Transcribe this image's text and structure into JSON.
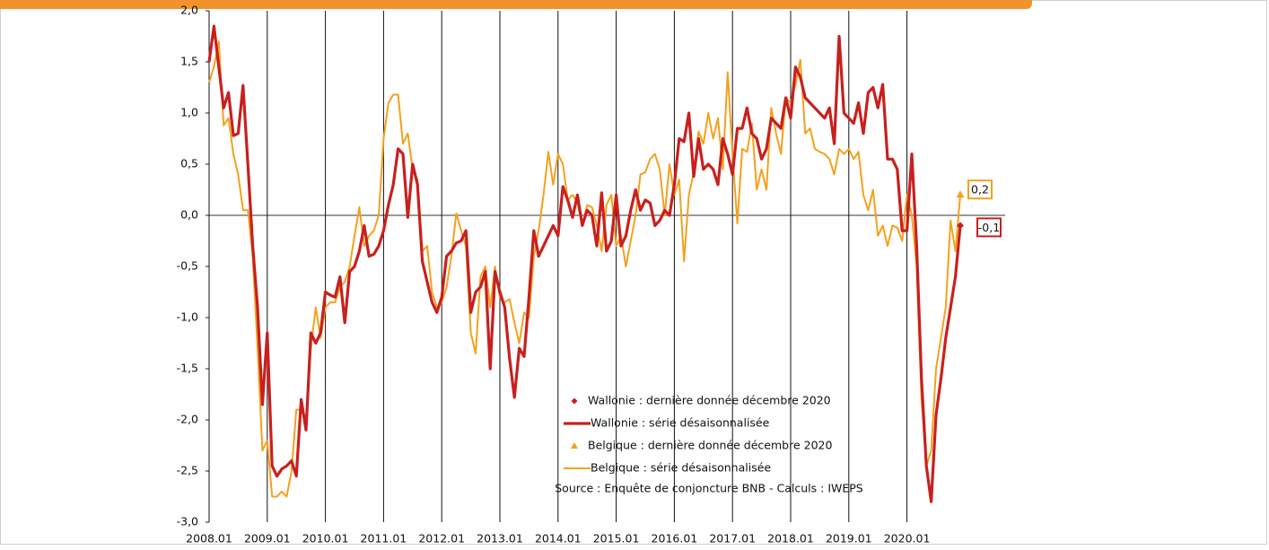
{
  "chart_data": {
    "type": "line",
    "categories": [
      "2008.01",
      null,
      null,
      null,
      null,
      null,
      null,
      null,
      null,
      null,
      null,
      null,
      "2009.01",
      null,
      null,
      null,
      null,
      null,
      null,
      null,
      null,
      null,
      null,
      null,
      "2010.01",
      null,
      null,
      null,
      null,
      null,
      null,
      null,
      null,
      null,
      null,
      null,
      "2011.01",
      null,
      null,
      null,
      null,
      null,
      null,
      null,
      null,
      null,
      null,
      null,
      "2012.01",
      null,
      null,
      null,
      null,
      null,
      null,
      null,
      null,
      null,
      null,
      null,
      "2013.01",
      null,
      null,
      null,
      null,
      null,
      null,
      null,
      null,
      null,
      null,
      null,
      "2014.01",
      null,
      null,
      null,
      null,
      null,
      null,
      null,
      null,
      null,
      null,
      null,
      "2015.01",
      null,
      null,
      null,
      null,
      null,
      null,
      null,
      null,
      null,
      null,
      null,
      "2016.01",
      null,
      null,
      null,
      null,
      null,
      null,
      null,
      null,
      null,
      null,
      null,
      "2017.01",
      null,
      null,
      null,
      null,
      null,
      null,
      null,
      null,
      null,
      null,
      null,
      "2018.01",
      null,
      null,
      null,
      null,
      null,
      null,
      null,
      null,
      null,
      null,
      null,
      "2019.01",
      null,
      null,
      null,
      null,
      null,
      null,
      null,
      null,
      null,
      null,
      null,
      "2020.01",
      null,
      null,
      null,
      null,
      null,
      null,
      null,
      null,
      null,
      null,
      null
    ],
    "ylim": [
      -3,
      2
    ],
    "yticks": [
      {
        "value": -3,
        "label": "-3,0"
      },
      {
        "value": -2.5,
        "label": "-2,5"
      },
      {
        "value": -2,
        "label": "-2,0"
      },
      {
        "value": -1.5,
        "label": "-1,5"
      },
      {
        "value": -1,
        "label": "-1,0"
      },
      {
        "value": -0.5,
        "label": "-0,5"
      },
      {
        "value": 0,
        "label": "0,0"
      },
      {
        "value": 0.5,
        "label": "0,5"
      },
      {
        "value": 1,
        "label": "1,0"
      },
      {
        "value": 1.5,
        "label": "1,5"
      },
      {
        "value": 2,
        "label": "2,0"
      }
    ],
    "series": [
      {
        "name": "Wallonie : série désaisonnalisée",
        "color": "#c8201e",
        "values": [
          1.5,
          1.85,
          1.45,
          1.05,
          1.2,
          0.78,
          0.8,
          1.27,
          0.5,
          -0.3,
          -0.9,
          -1.85,
          -1.15,
          -2.45,
          -2.55,
          -2.48,
          -2.45,
          -2.4,
          -2.55,
          -1.8,
          -2.1,
          -1.15,
          -1.25,
          -1.15,
          -0.75,
          -0.78,
          -0.8,
          -0.6,
          -1.05,
          -0.55,
          -0.5,
          -0.35,
          -0.1,
          -0.4,
          -0.38,
          -0.3,
          -0.15,
          0.1,
          0.3,
          0.65,
          0.6,
          -0.02,
          0.5,
          0.3,
          -0.45,
          -0.65,
          -0.85,
          -0.95,
          -0.8,
          -0.4,
          -0.35,
          -0.27,
          -0.25,
          -0.15,
          -0.95,
          -0.75,
          -0.7,
          -0.55,
          -1.5,
          -0.55,
          -0.75,
          -0.9,
          -1.4,
          -1.78,
          -1.3,
          -1.38,
          -0.8,
          -0.15,
          -0.4,
          -0.3,
          -0.2,
          -0.1,
          -0.2,
          0.28,
          0.15,
          -0.02,
          0.2,
          -0.1,
          0.05,
          0.0,
          -0.3,
          0.22,
          -0.35,
          -0.25,
          0.2,
          -0.3,
          -0.2,
          0.05,
          0.25,
          0.05,
          0.15,
          0.12,
          -0.1,
          -0.05,
          0.05,
          0.0,
          0.3,
          0.75,
          0.72,
          1.0,
          0.38,
          0.75,
          0.45,
          0.5,
          0.45,
          0.3,
          0.75,
          0.6,
          0.4,
          0.85,
          0.85,
          1.05,
          0.8,
          0.75,
          0.55,
          0.65,
          0.95,
          0.9,
          0.85,
          1.15,
          0.95,
          1.45,
          1.35,
          1.15,
          1.1,
          1.05,
          1.0,
          0.95,
          1.05,
          0.7,
          1.75,
          1.0,
          0.95,
          0.9,
          1.1,
          0.8,
          1.2,
          1.25,
          1.05,
          1.28,
          0.55,
          0.55,
          0.45,
          -0.15,
          -0.15,
          0.6,
          -0.3,
          -1.6,
          -2.45,
          -2.8,
          -1.95,
          -1.6,
          -1.2,
          -0.9,
          -0.6,
          -0.1
        ],
        "last": {
          "name": "Wallonie : dernière donnée décembre 2020",
          "marker": "diamond",
          "value": -0.1,
          "label": "-0,1"
        }
      },
      {
        "name": "Belgique : série désaisonnalisée",
        "color": "#f4a11d",
        "values": [
          1.3,
          1.45,
          1.7,
          0.88,
          0.95,
          0.6,
          0.4,
          0.05,
          0.05,
          -0.4,
          -1.3,
          -2.3,
          -2.2,
          -2.75,
          -2.75,
          -2.7,
          -2.75,
          -2.5,
          -1.9,
          -1.9,
          -2.0,
          -1.3,
          -0.9,
          -1.2,
          -0.9,
          -0.85,
          -0.85,
          -0.7,
          -0.65,
          -0.5,
          -0.2,
          0.08,
          -0.3,
          -0.2,
          -0.15,
          0.0,
          0.75,
          1.1,
          1.18,
          1.18,
          0.7,
          0.8,
          0.45,
          0.35,
          -0.35,
          -0.3,
          -0.75,
          -0.9,
          -0.85,
          -0.7,
          -0.4,
          0.02,
          -0.15,
          -0.3,
          -1.15,
          -1.35,
          -0.6,
          -0.5,
          -0.9,
          -0.5,
          -0.8,
          -0.85,
          -0.82,
          -1.05,
          -1.25,
          -0.95,
          -1.0,
          -0.4,
          -0.15,
          0.2,
          0.62,
          0.3,
          0.6,
          0.5,
          0.15,
          0.2,
          0.12,
          -0.1,
          0.1,
          0.08,
          -0.1,
          -0.35,
          0.1,
          0.2,
          -0.3,
          -0.2,
          -0.5,
          -0.25,
          0.0,
          0.4,
          0.42,
          0.55,
          0.6,
          0.45,
          0.0,
          0.5,
          0.2,
          0.35,
          -0.45,
          0.2,
          0.42,
          0.82,
          0.7,
          1.0,
          0.75,
          0.95,
          0.45,
          1.4,
          0.6,
          -0.08,
          0.65,
          0.62,
          0.9,
          0.25,
          0.45,
          0.25,
          1.05,
          0.8,
          0.6,
          1.15,
          1.1,
          1.28,
          1.52,
          0.8,
          0.85,
          0.65,
          0.62,
          0.6,
          0.55,
          0.4,
          0.65,
          0.6,
          0.65,
          0.55,
          0.62,
          0.2,
          0.05,
          0.25,
          -0.2,
          -0.1,
          -0.3,
          -0.1,
          -0.12,
          -0.25,
          0.2,
          0.0,
          -0.5,
          -1.8,
          -2.45,
          -2.3,
          -1.5,
          -1.2,
          -0.9,
          -0.05,
          -0.35,
          0.2
        ],
        "last": {
          "name": "Belgique : dernière donnée décembre 2020",
          "marker": "triangle",
          "value": 0.2,
          "label": "0,2"
        }
      }
    ],
    "source": "Source : Enquête de conjoncture BNB - Calculs : IWEPS",
    "grid": true
  }
}
